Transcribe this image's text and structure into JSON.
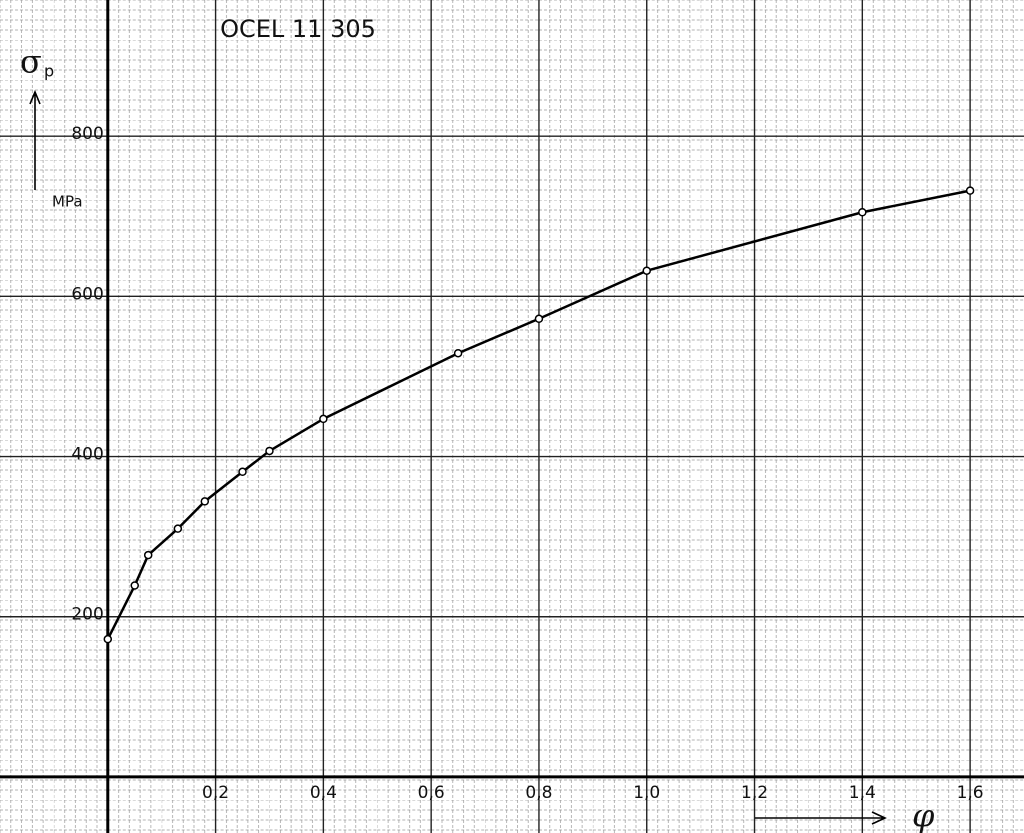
{
  "chart_data": {
    "type": "line",
    "title": "OCEL 11 305",
    "y_label": "σ",
    "y_label_sub": "p",
    "y_unit": "MPa",
    "x_label": "φ",
    "x": [
      0,
      0.05,
      0.075,
      0.13,
      0.18,
      0.25,
      0.3,
      0.4,
      0.65,
      0.8,
      1.0,
      1.4,
      1.6
    ],
    "series": [
      {
        "name": "σp",
        "color": "#000000",
        "values": [
          172,
          239,
          277,
          310,
          344,
          381,
          407,
          447,
          529,
          572,
          632,
          705,
          732
        ]
      }
    ],
    "xlim": [
      -0.2,
      1.7
    ],
    "ylim": [
      -70,
      970
    ],
    "xticks": [
      {
        "value": 0.2,
        "label": "0,2"
      },
      {
        "value": 0.4,
        "label": "0,4"
      },
      {
        "value": 0.6,
        "label": "0,6"
      },
      {
        "value": 0.8,
        "label": "0,8"
      },
      {
        "value": 1.0,
        "label": "1,0"
      },
      {
        "value": 1.2,
        "label": "1,2"
      },
      {
        "value": 1.4,
        "label": "1,4"
      },
      {
        "value": 1.6,
        "label": "1,6"
      }
    ],
    "yticks": [
      200,
      400,
      600,
      800
    ],
    "grid": true
  }
}
